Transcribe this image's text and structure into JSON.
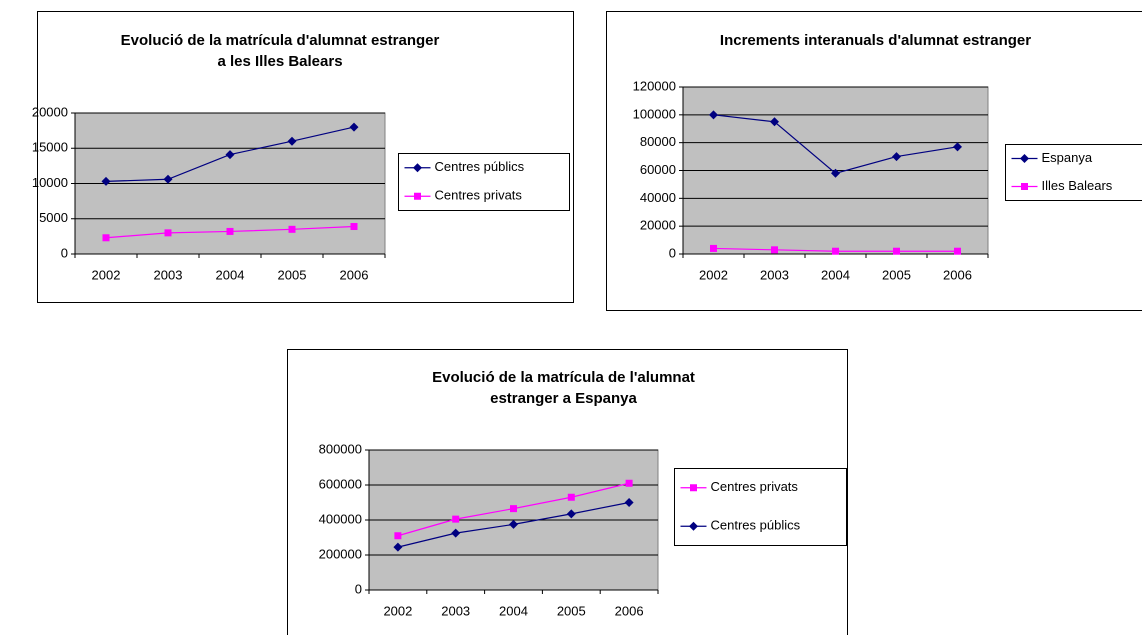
{
  "chart_data": [
    {
      "type": "line",
      "title": [
        "Evolució de la matrícula d'alumnat estranger",
        "a les Illes Balears"
      ],
      "categories": [
        "2002",
        "2003",
        "2004",
        "2005",
        "2006"
      ],
      "series": [
        {
          "name": "Centres públics",
          "color": "#000080",
          "marker": "diamond",
          "values": [
            10300,
            10600,
            14100,
            16000,
            18000
          ]
        },
        {
          "name": "Centres privats",
          "color": "#ff00ff",
          "marker": "square",
          "values": [
            2300,
            3000,
            3200,
            3500,
            3900
          ]
        }
      ],
      "ylim": [
        0,
        20000
      ],
      "yticks": [
        0,
        5000,
        10000,
        15000,
        20000
      ],
      "grid": true
    },
    {
      "type": "line",
      "title": [
        "Increments interanuals d'alumnat estranger"
      ],
      "categories": [
        "2002",
        "2003",
        "2004",
        "2005",
        "2006"
      ],
      "series": [
        {
          "name": "Espanya",
          "color": "#000080",
          "marker": "diamond",
          "values": [
            100000,
            95000,
            58000,
            70000,
            77000
          ]
        },
        {
          "name": "Illes Balears",
          "color": "#ff00ff",
          "marker": "square",
          "values": [
            4000,
            3000,
            2000,
            2000,
            2000
          ]
        }
      ],
      "ylim": [
        0,
        120000
      ],
      "yticks": [
        0,
        20000,
        40000,
        60000,
        80000,
        100000,
        120000
      ],
      "grid": true
    },
    {
      "type": "line",
      "title": [
        "Evolució de la matrícula de l'alumnat",
        "estranger a Espanya"
      ],
      "categories": [
        "2002",
        "2003",
        "2004",
        "2005",
        "2006"
      ],
      "series": [
        {
          "name": "Centres privats",
          "color": "#ff00ff",
          "marker": "square",
          "values": [
            310000,
            405000,
            465000,
            530000,
            610000
          ]
        },
        {
          "name": "Centres públics",
          "color": "#000080",
          "marker": "diamond",
          "values": [
            245000,
            325000,
            375000,
            435000,
            500000
          ]
        }
      ],
      "ylim": [
        0,
        800000
      ],
      "yticks": [
        0,
        200000,
        400000,
        600000,
        800000
      ],
      "grid": true
    }
  ]
}
